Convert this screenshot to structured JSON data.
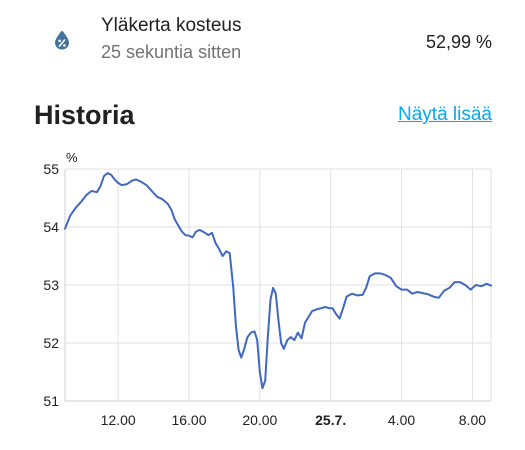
{
  "entity": {
    "name": "Yläkerta kosteus",
    "last_changed": "25 sekuntia sitten",
    "state": "52,99 %",
    "icon": "water-percent-icon",
    "icon_color": "#44739e"
  },
  "history": {
    "title": "Historia",
    "show_more_label": "Näytä lisää"
  },
  "chart_data": {
    "type": "line",
    "title": "",
    "ylabel": "%",
    "xlabel": "",
    "ylim": [
      51,
      55
    ],
    "xlim_hours": [
      9,
      33.05
    ],
    "grid": true,
    "legend": "none",
    "series_color": "#3f68c2",
    "x_ticks": [
      {
        "hour": 12,
        "label": "12.00",
        "bold": false
      },
      {
        "hour": 16,
        "label": "16.00",
        "bold": false
      },
      {
        "hour": 20,
        "label": "20.00",
        "bold": false
      },
      {
        "hour": 24,
        "label": "25.7.",
        "bold": true
      },
      {
        "hour": 28,
        "label": "4.00",
        "bold": false
      },
      {
        "hour": 32,
        "label": "8.00",
        "bold": false
      }
    ],
    "y_ticks": [
      51,
      52,
      53,
      54,
      55
    ],
    "series": [
      {
        "points": [
          [
            9.0,
            53.97
          ],
          [
            9.1,
            54.05
          ],
          [
            9.3,
            54.2
          ],
          [
            9.6,
            54.33
          ],
          [
            9.9,
            54.43
          ],
          [
            10.2,
            54.55
          ],
          [
            10.5,
            54.62
          ],
          [
            10.8,
            54.6
          ],
          [
            11.0,
            54.7
          ],
          [
            11.2,
            54.88
          ],
          [
            11.4,
            54.93
          ],
          [
            11.6,
            54.9
          ],
          [
            11.8,
            54.82
          ],
          [
            12.0,
            54.76
          ],
          [
            12.2,
            54.72
          ],
          [
            12.5,
            54.74
          ],
          [
            12.8,
            54.8
          ],
          [
            13.0,
            54.82
          ],
          [
            13.3,
            54.78
          ],
          [
            13.6,
            54.72
          ],
          [
            13.9,
            54.62
          ],
          [
            14.2,
            54.52
          ],
          [
            14.5,
            54.48
          ],
          [
            14.8,
            54.4
          ],
          [
            15.0,
            54.3
          ],
          [
            15.2,
            54.13
          ],
          [
            15.4,
            54.02
          ],
          [
            15.6,
            53.92
          ],
          [
            15.8,
            53.86
          ],
          [
            16.0,
            53.85
          ],
          [
            16.2,
            53.82
          ],
          [
            16.4,
            53.92
          ],
          [
            16.6,
            53.95
          ],
          [
            16.9,
            53.9
          ],
          [
            17.1,
            53.86
          ],
          [
            17.3,
            53.9
          ],
          [
            17.5,
            53.72
          ],
          [
            17.7,
            53.62
          ],
          [
            17.9,
            53.5
          ],
          [
            18.1,
            53.58
          ],
          [
            18.3,
            53.55
          ],
          [
            18.5,
            52.95
          ],
          [
            18.65,
            52.3
          ],
          [
            18.8,
            51.88
          ],
          [
            18.95,
            51.75
          ],
          [
            19.1,
            51.88
          ],
          [
            19.3,
            52.1
          ],
          [
            19.5,
            52.18
          ],
          [
            19.7,
            52.2
          ],
          [
            19.85,
            52.05
          ],
          [
            20.0,
            51.5
          ],
          [
            20.15,
            51.22
          ],
          [
            20.3,
            51.35
          ],
          [
            20.45,
            52.1
          ],
          [
            20.6,
            52.75
          ],
          [
            20.75,
            52.95
          ],
          [
            20.9,
            52.85
          ],
          [
            21.05,
            52.4
          ],
          [
            21.2,
            52.0
          ],
          [
            21.35,
            51.9
          ],
          [
            21.55,
            52.05
          ],
          [
            21.75,
            52.1
          ],
          [
            21.95,
            52.05
          ],
          [
            22.15,
            52.18
          ],
          [
            22.35,
            52.08
          ],
          [
            22.55,
            52.35
          ],
          [
            22.75,
            52.45
          ],
          [
            22.95,
            52.55
          ],
          [
            23.2,
            52.58
          ],
          [
            23.45,
            52.6
          ],
          [
            23.7,
            52.62
          ],
          [
            23.9,
            52.6
          ],
          [
            24.1,
            52.6
          ],
          [
            24.3,
            52.5
          ],
          [
            24.5,
            52.42
          ],
          [
            24.7,
            52.6
          ],
          [
            24.9,
            52.8
          ],
          [
            25.2,
            52.85
          ],
          [
            25.5,
            52.82
          ],
          [
            25.8,
            52.83
          ],
          [
            26.0,
            52.95
          ],
          [
            26.2,
            53.15
          ],
          [
            26.5,
            53.2
          ],
          [
            26.8,
            53.2
          ],
          [
            27.1,
            53.17
          ],
          [
            27.4,
            53.12
          ],
          [
            27.7,
            52.98
          ],
          [
            28.0,
            52.92
          ],
          [
            28.3,
            52.92
          ],
          [
            28.6,
            52.85
          ],
          [
            28.9,
            52.88
          ],
          [
            29.2,
            52.86
          ],
          [
            29.5,
            52.84
          ],
          [
            29.8,
            52.8
          ],
          [
            30.1,
            52.78
          ],
          [
            30.4,
            52.9
          ],
          [
            30.7,
            52.95
          ],
          [
            31.0,
            53.05
          ],
          [
            31.3,
            53.05
          ],
          [
            31.6,
            53.0
          ],
          [
            31.9,
            52.92
          ],
          [
            32.2,
            53.0
          ],
          [
            32.5,
            52.98
          ],
          [
            32.8,
            53.02
          ],
          [
            33.05,
            52.99
          ]
        ]
      }
    ]
  }
}
